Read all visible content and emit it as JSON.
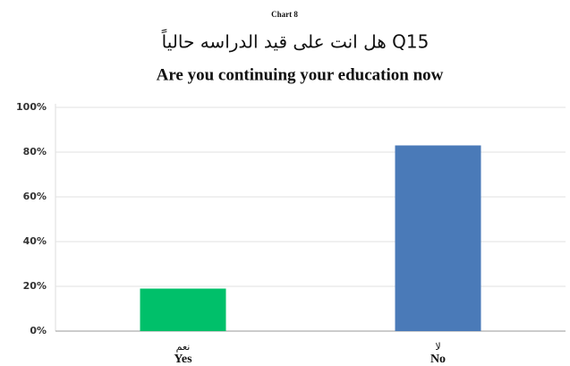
{
  "chart_data": {
    "type": "bar",
    "label": "Chart 8",
    "title": "هل انت على قيد الدراسه حالياً Q15",
    "subtitle": "Are you continuing your education now",
    "categories": [
      "Yes",
      "No"
    ],
    "categories_ar": [
      "نعم",
      "لا"
    ],
    "values": [
      19,
      83
    ],
    "colors": [
      "#00c06a",
      "#4a7ab8"
    ],
    "ylim": [
      0,
      100
    ],
    "yticks": [
      {
        "value": 0,
        "label": "0%"
      },
      {
        "value": 20,
        "label": "20%"
      },
      {
        "value": 40,
        "label": "40%"
      },
      {
        "value": 60,
        "label": "60%"
      },
      {
        "value": 80,
        "label": "80%"
      },
      {
        "value": 100,
        "label": "100%"
      }
    ],
    "grid": true
  }
}
